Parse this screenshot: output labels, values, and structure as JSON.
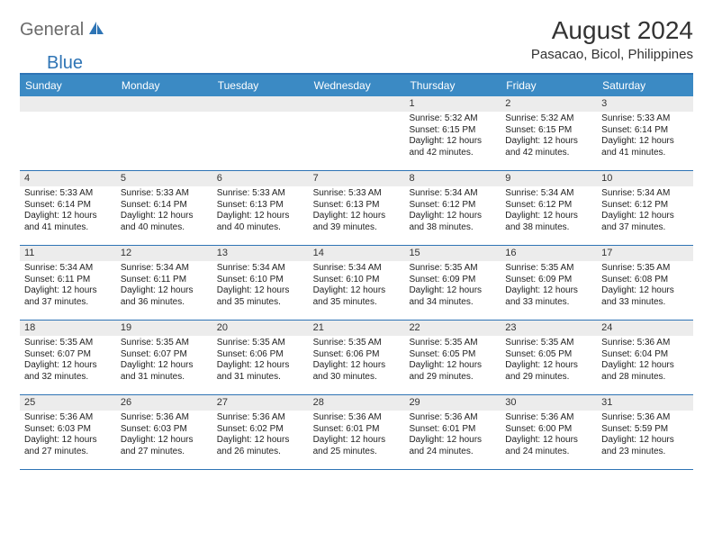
{
  "logo": {
    "general": "General",
    "blue": "Blue"
  },
  "title": "August 2024",
  "location": "Pasacao, Bicol, Philippines",
  "dayHeaders": [
    "Sunday",
    "Monday",
    "Tuesday",
    "Wednesday",
    "Thursday",
    "Friday",
    "Saturday"
  ],
  "colors": {
    "headerBg": "#3b8ac4",
    "borderBlue": "#2e74b5",
    "bandGray": "#ececec",
    "text": "#333333"
  },
  "weeks": [
    [
      {
        "empty": true
      },
      {
        "empty": true
      },
      {
        "empty": true
      },
      {
        "empty": true
      },
      {
        "num": "1",
        "sunrise": "Sunrise: 5:32 AM",
        "sunset": "Sunset: 6:15 PM",
        "day1": "Daylight: 12 hours",
        "day2": "and 42 minutes."
      },
      {
        "num": "2",
        "sunrise": "Sunrise: 5:32 AM",
        "sunset": "Sunset: 6:15 PM",
        "day1": "Daylight: 12 hours",
        "day2": "and 42 minutes."
      },
      {
        "num": "3",
        "sunrise": "Sunrise: 5:33 AM",
        "sunset": "Sunset: 6:14 PM",
        "day1": "Daylight: 12 hours",
        "day2": "and 41 minutes."
      }
    ],
    [
      {
        "num": "4",
        "sunrise": "Sunrise: 5:33 AM",
        "sunset": "Sunset: 6:14 PM",
        "day1": "Daylight: 12 hours",
        "day2": "and 41 minutes."
      },
      {
        "num": "5",
        "sunrise": "Sunrise: 5:33 AM",
        "sunset": "Sunset: 6:14 PM",
        "day1": "Daylight: 12 hours",
        "day2": "and 40 minutes."
      },
      {
        "num": "6",
        "sunrise": "Sunrise: 5:33 AM",
        "sunset": "Sunset: 6:13 PM",
        "day1": "Daylight: 12 hours",
        "day2": "and 40 minutes."
      },
      {
        "num": "7",
        "sunrise": "Sunrise: 5:33 AM",
        "sunset": "Sunset: 6:13 PM",
        "day1": "Daylight: 12 hours",
        "day2": "and 39 minutes."
      },
      {
        "num": "8",
        "sunrise": "Sunrise: 5:34 AM",
        "sunset": "Sunset: 6:12 PM",
        "day1": "Daylight: 12 hours",
        "day2": "and 38 minutes."
      },
      {
        "num": "9",
        "sunrise": "Sunrise: 5:34 AM",
        "sunset": "Sunset: 6:12 PM",
        "day1": "Daylight: 12 hours",
        "day2": "and 38 minutes."
      },
      {
        "num": "10",
        "sunrise": "Sunrise: 5:34 AM",
        "sunset": "Sunset: 6:12 PM",
        "day1": "Daylight: 12 hours",
        "day2": "and 37 minutes."
      }
    ],
    [
      {
        "num": "11",
        "sunrise": "Sunrise: 5:34 AM",
        "sunset": "Sunset: 6:11 PM",
        "day1": "Daylight: 12 hours",
        "day2": "and 37 minutes."
      },
      {
        "num": "12",
        "sunrise": "Sunrise: 5:34 AM",
        "sunset": "Sunset: 6:11 PM",
        "day1": "Daylight: 12 hours",
        "day2": "and 36 minutes."
      },
      {
        "num": "13",
        "sunrise": "Sunrise: 5:34 AM",
        "sunset": "Sunset: 6:10 PM",
        "day1": "Daylight: 12 hours",
        "day2": "and 35 minutes."
      },
      {
        "num": "14",
        "sunrise": "Sunrise: 5:34 AM",
        "sunset": "Sunset: 6:10 PM",
        "day1": "Daylight: 12 hours",
        "day2": "and 35 minutes."
      },
      {
        "num": "15",
        "sunrise": "Sunrise: 5:35 AM",
        "sunset": "Sunset: 6:09 PM",
        "day1": "Daylight: 12 hours",
        "day2": "and 34 minutes."
      },
      {
        "num": "16",
        "sunrise": "Sunrise: 5:35 AM",
        "sunset": "Sunset: 6:09 PM",
        "day1": "Daylight: 12 hours",
        "day2": "and 33 minutes."
      },
      {
        "num": "17",
        "sunrise": "Sunrise: 5:35 AM",
        "sunset": "Sunset: 6:08 PM",
        "day1": "Daylight: 12 hours",
        "day2": "and 33 minutes."
      }
    ],
    [
      {
        "num": "18",
        "sunrise": "Sunrise: 5:35 AM",
        "sunset": "Sunset: 6:07 PM",
        "day1": "Daylight: 12 hours",
        "day2": "and 32 minutes."
      },
      {
        "num": "19",
        "sunrise": "Sunrise: 5:35 AM",
        "sunset": "Sunset: 6:07 PM",
        "day1": "Daylight: 12 hours",
        "day2": "and 31 minutes."
      },
      {
        "num": "20",
        "sunrise": "Sunrise: 5:35 AM",
        "sunset": "Sunset: 6:06 PM",
        "day1": "Daylight: 12 hours",
        "day2": "and 31 minutes."
      },
      {
        "num": "21",
        "sunrise": "Sunrise: 5:35 AM",
        "sunset": "Sunset: 6:06 PM",
        "day1": "Daylight: 12 hours",
        "day2": "and 30 minutes."
      },
      {
        "num": "22",
        "sunrise": "Sunrise: 5:35 AM",
        "sunset": "Sunset: 6:05 PM",
        "day1": "Daylight: 12 hours",
        "day2": "and 29 minutes."
      },
      {
        "num": "23",
        "sunrise": "Sunrise: 5:35 AM",
        "sunset": "Sunset: 6:05 PM",
        "day1": "Daylight: 12 hours",
        "day2": "and 29 minutes."
      },
      {
        "num": "24",
        "sunrise": "Sunrise: 5:36 AM",
        "sunset": "Sunset: 6:04 PM",
        "day1": "Daylight: 12 hours",
        "day2": "and 28 minutes."
      }
    ],
    [
      {
        "num": "25",
        "sunrise": "Sunrise: 5:36 AM",
        "sunset": "Sunset: 6:03 PM",
        "day1": "Daylight: 12 hours",
        "day2": "and 27 minutes."
      },
      {
        "num": "26",
        "sunrise": "Sunrise: 5:36 AM",
        "sunset": "Sunset: 6:03 PM",
        "day1": "Daylight: 12 hours",
        "day2": "and 27 minutes."
      },
      {
        "num": "27",
        "sunrise": "Sunrise: 5:36 AM",
        "sunset": "Sunset: 6:02 PM",
        "day1": "Daylight: 12 hours",
        "day2": "and 26 minutes."
      },
      {
        "num": "28",
        "sunrise": "Sunrise: 5:36 AM",
        "sunset": "Sunset: 6:01 PM",
        "day1": "Daylight: 12 hours",
        "day2": "and 25 minutes."
      },
      {
        "num": "29",
        "sunrise": "Sunrise: 5:36 AM",
        "sunset": "Sunset: 6:01 PM",
        "day1": "Daylight: 12 hours",
        "day2": "and 24 minutes."
      },
      {
        "num": "30",
        "sunrise": "Sunrise: 5:36 AM",
        "sunset": "Sunset: 6:00 PM",
        "day1": "Daylight: 12 hours",
        "day2": "and 24 minutes."
      },
      {
        "num": "31",
        "sunrise": "Sunrise: 5:36 AM",
        "sunset": "Sunset: 5:59 PM",
        "day1": "Daylight: 12 hours",
        "day2": "and 23 minutes."
      }
    ]
  ]
}
